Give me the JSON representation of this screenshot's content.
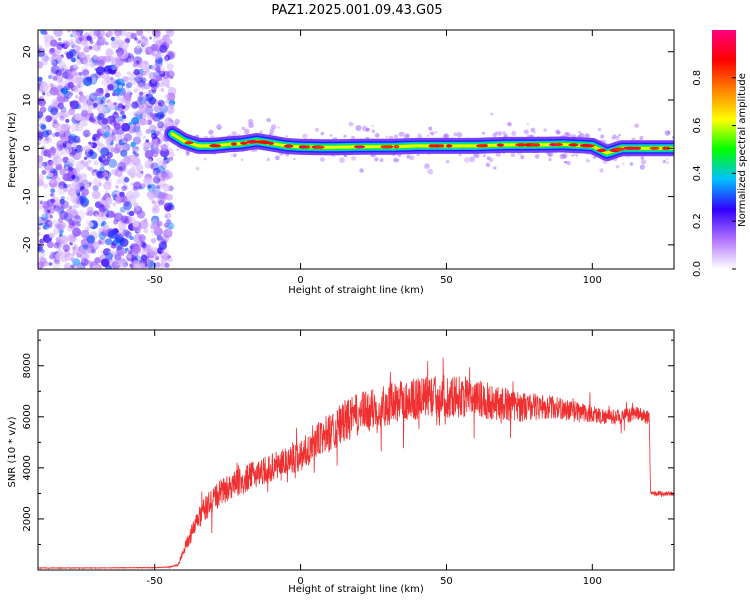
{
  "title": "PAZ1.2025.001.09.43.G05",
  "chart_data": [
    {
      "type": "heatmap",
      "xlabel": "Height of straight line (km)",
      "ylabel": "Frequency (Hz)",
      "xlim": [
        -90,
        128
      ],
      "ylim": [
        -25,
        24.5
      ],
      "xticks": [
        -50,
        0,
        50,
        100
      ],
      "yticks": [
        -20,
        -10,
        0,
        10,
        20
      ],
      "noise_region_x": [
        -90,
        -44
      ],
      "ridge": {
        "x": [
          -44,
          -40,
          -35,
          -30,
          -25,
          -20,
          -15,
          -10,
          -5,
          0,
          10,
          20,
          30,
          40,
          50,
          60,
          70,
          80,
          90,
          100,
          105,
          110,
          115,
          120,
          128
        ],
        "freq": [
          3,
          1.5,
          0.5,
          0.5,
          0.8,
          1,
          1.5,
          1,
          0.5,
          0.3,
          0.2,
          0.3,
          0.3,
          0.5,
          0.5,
          0.5,
          0.7,
          0.7,
          0.8,
          0.5,
          -1,
          0,
          0,
          0,
          0
        ]
      },
      "colorbar": {
        "label": "Normalized spectral amplitude",
        "range": [
          0,
          1
        ],
        "ticks": [
          "0.0",
          "0.2",
          "0.4",
          "0.6",
          "0.8"
        ],
        "colors": [
          "#ffffff",
          "#b070ff",
          "#3000ff",
          "#00c0ff",
          "#00ff00",
          "#ffff00",
          "#ff8000",
          "#ff0000",
          "#ff0080"
        ]
      },
      "grid": false
    },
    {
      "type": "line",
      "xlabel": "Height of straight line (km)",
      "ylabel": "SNR (10 * v/v)",
      "xlim": [
        -90,
        128
      ],
      "ylim": [
        0,
        9400
      ],
      "xticks": [
        -50,
        0,
        50,
        100
      ],
      "yticks": [
        2000,
        4000,
        6000,
        8000
      ],
      "color": "#f03030",
      "series": [
        {
          "x": [
            -90,
            -80,
            -70,
            -60,
            -50,
            -45,
            -42,
            -40,
            -35,
            -30,
            -25,
            -20,
            -15,
            -10,
            -5,
            0,
            5,
            10,
            15,
            20,
            25,
            30,
            35,
            40,
            45,
            50,
            55,
            60,
            65,
            70,
            75,
            80,
            85,
            90,
            95,
            100,
            105,
            110,
            115,
            119,
            119.5,
            120,
            125,
            128
          ],
          "y": [
            80,
            80,
            80,
            90,
            90,
            120,
            200,
            800,
            2000,
            2800,
            3200,
            3500,
            3800,
            4000,
            4300,
            4500,
            5000,
            5400,
            5800,
            6100,
            6300,
            6500,
            6600,
            6700,
            6800,
            6800,
            6800,
            6700,
            6600,
            6500,
            6400,
            6400,
            6400,
            6300,
            6200,
            6100,
            6000,
            6000,
            6100,
            6000,
            6000,
            3000,
            3000,
            3000
          ],
          "noise_amplitude": [
            20,
            20,
            20,
            20,
            20,
            30,
            60,
            300,
            800,
            900,
            900,
            900,
            900,
            900,
            1000,
            1100,
            1200,
            1300,
            1400,
            1400,
            1400,
            1400,
            1400,
            1400,
            1400,
            1400,
            1400,
            1300,
            1200,
            1100,
            1000,
            900,
            800,
            700,
            700,
            600,
            500,
            500,
            500,
            500,
            500,
            150,
            150,
            150
          ]
        }
      ],
      "grid": false
    }
  ]
}
